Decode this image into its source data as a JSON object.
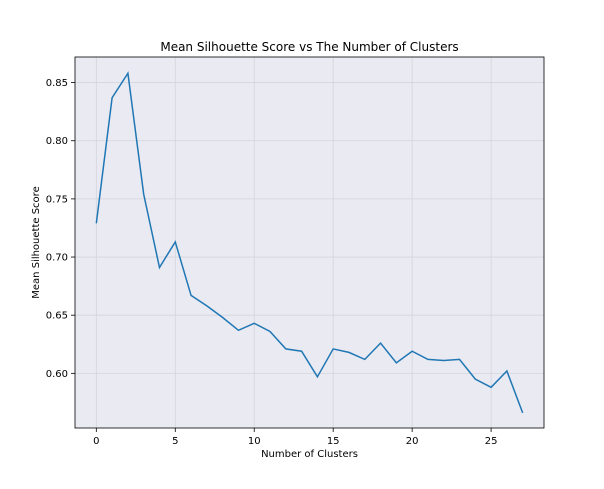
{
  "chart_data": {
    "type": "line",
    "title": "Mean Silhouette Score vs The Number of Clusters",
    "xlabel": "Number of Clusters",
    "ylabel": "Mean Silhouette Score",
    "xlim": [
      -1.35,
      28.35
    ],
    "ylim": [
      0.553,
      0.872
    ],
    "grid": true,
    "x_ticks": [
      0,
      5,
      10,
      15,
      20,
      25
    ],
    "x_tick_labels": [
      "0",
      "5",
      "10",
      "15",
      "20",
      "25"
    ],
    "y_ticks": [
      0.6,
      0.65,
      0.7,
      0.75,
      0.8,
      0.85
    ],
    "y_tick_labels": [
      "0.60",
      "0.65",
      "0.70",
      "0.75",
      "0.80",
      "0.85"
    ],
    "line_color": "#1f77b4",
    "plot_background": "#eaeaf2",
    "series": [
      {
        "x": [
          0,
          1,
          2,
          3,
          4,
          5,
          6,
          7,
          8,
          9,
          10,
          11,
          12,
          13,
          14,
          15,
          16,
          17,
          18,
          19,
          20,
          21,
          22,
          23,
          24,
          25,
          26,
          27
        ],
        "values": [
          0.729,
          0.837,
          0.858,
          0.754,
          0.691,
          0.713,
          0.667,
          0.658,
          0.648,
          0.637,
          0.643,
          0.636,
          0.621,
          0.619,
          0.597,
          0.621,
          0.618,
          0.612,
          0.626,
          0.609,
          0.619,
          0.612,
          0.611,
          0.612,
          0.595,
          0.588,
          0.602,
          0.566
        ]
      }
    ]
  }
}
